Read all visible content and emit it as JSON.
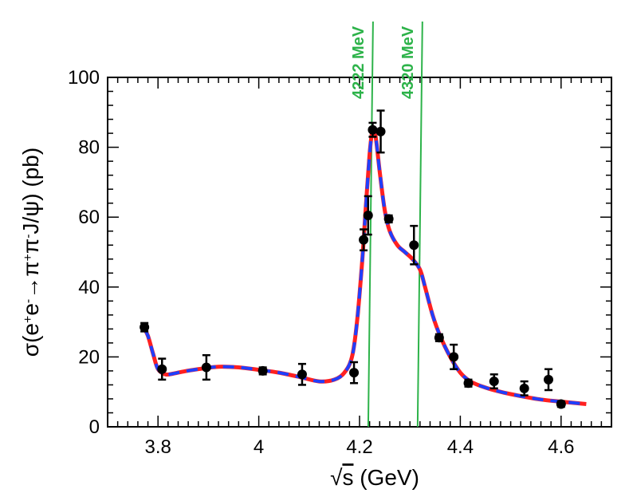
{
  "chart_data": {
    "type": "scatter",
    "title": "",
    "xlabel_prefix": "√",
    "xlabel_var": "s",
    "xlabel_unit": " (GeV)",
    "ylabel": {
      "sigma": "σ(e",
      "sup1": "+",
      "e": "e",
      "sup2": "-",
      "arrow": "→π",
      "sup3": "+",
      "pi": "π",
      "sup4": "-",
      "tail": "J/ψ) (pb)"
    },
    "xlim": [
      3.7,
      4.7
    ],
    "ylim": [
      0,
      100
    ],
    "x_ticks": [
      3.8,
      4.0,
      4.2,
      4.4,
      4.6
    ],
    "x_tick_labels": [
      "3.8",
      "4",
      "4.2",
      "4.4",
      "4.6"
    ],
    "y_ticks": [
      0,
      20,
      40,
      60,
      80,
      100
    ],
    "y_tick_labels": [
      "0",
      "20",
      "40",
      "60",
      "80",
      "100"
    ],
    "data_points": [
      {
        "x": 3.773,
        "y": 28.5,
        "err": 1.2
      },
      {
        "x": 3.808,
        "y": 16.5,
        "err": 3.0
      },
      {
        "x": 3.896,
        "y": 17.0,
        "err": 3.5
      },
      {
        "x": 4.008,
        "y": 16.0,
        "err": 1.0
      },
      {
        "x": 4.086,
        "y": 15.0,
        "err": 3.0
      },
      {
        "x": 4.189,
        "y": 15.5,
        "err": 3.0
      },
      {
        "x": 4.208,
        "y": 53.5,
        "err": 3.0
      },
      {
        "x": 4.217,
        "y": 60.5,
        "err": 5.5
      },
      {
        "x": 4.226,
        "y": 85.0,
        "err": 2.0
      },
      {
        "x": 4.242,
        "y": 84.5,
        "err": 6.0
      },
      {
        "x": 4.258,
        "y": 59.5,
        "err": 1.0
      },
      {
        "x": 4.308,
        "y": 52.0,
        "err": 5.5
      },
      {
        "x": 4.358,
        "y": 25.5,
        "err": 1.0
      },
      {
        "x": 4.387,
        "y": 20.0,
        "err": 3.5
      },
      {
        "x": 4.416,
        "y": 12.5,
        "err": 1.0
      },
      {
        "x": 4.467,
        "y": 13.0,
        "err": 2.0
      },
      {
        "x": 4.527,
        "y": 11.0,
        "err": 2.0
      },
      {
        "x": 4.575,
        "y": 13.5,
        "err": 3.0
      },
      {
        "x": 4.6,
        "y": 6.5,
        "err": 0.8
      }
    ],
    "fit_curve": {
      "x": [
        3.773,
        3.78,
        3.79,
        3.8,
        3.815,
        3.83,
        3.85,
        3.88,
        3.92,
        3.96,
        4.0,
        4.04,
        4.08,
        4.12,
        4.15,
        4.17,
        4.185,
        4.195,
        4.205,
        4.212,
        4.22,
        4.226,
        4.232,
        4.24,
        4.25,
        4.26,
        4.275,
        4.29,
        4.305,
        4.32,
        4.33,
        4.345,
        4.36,
        4.38,
        4.4,
        4.42,
        4.45,
        4.48,
        4.52,
        4.56,
        4.6,
        4.65
      ],
      "y": [
        28.0,
        26.0,
        21.0,
        16.5,
        15.0,
        15.2,
        15.8,
        16.5,
        17.2,
        17.0,
        16.3,
        15.5,
        14.3,
        13.0,
        13.5,
        15.5,
        20.0,
        30.0,
        47.0,
        62.0,
        78.0,
        85.0,
        83.0,
        73.0,
        62.0,
        56.0,
        52.0,
        50.0,
        48.0,
        45.0,
        40.0,
        32.0,
        26.0,
        20.0,
        15.5,
        13.0,
        11.2,
        10.0,
        8.8,
        7.8,
        7.2,
        6.5
      ],
      "styles": [
        {
          "name": "solid red fit",
          "color": "#ff2020",
          "dashed": false
        },
        {
          "name": "dashed blue fit",
          "color": "#1f3fff",
          "dashed": true
        }
      ]
    },
    "vertical_lines": [
      {
        "x": 4.222,
        "label": "4222 MeV",
        "color": "#2db34a"
      },
      {
        "x": 4.32,
        "label": "4320 MeV",
        "color": "#2db34a"
      }
    ]
  }
}
